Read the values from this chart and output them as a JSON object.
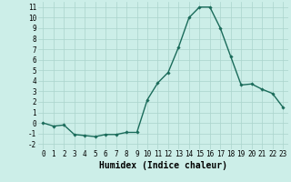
{
  "x": [
    0,
    1,
    2,
    3,
    4,
    5,
    6,
    7,
    8,
    9,
    10,
    11,
    12,
    13,
    14,
    15,
    16,
    17,
    18,
    19,
    20,
    21,
    22,
    23
  ],
  "y": [
    0.0,
    -0.3,
    -0.2,
    -1.1,
    -1.2,
    -1.3,
    -1.1,
    -1.1,
    -0.9,
    -0.9,
    2.2,
    3.8,
    4.8,
    7.2,
    10.0,
    11.0,
    11.0,
    9.0,
    6.3,
    3.6,
    3.7,
    3.2,
    2.8,
    1.5
  ],
  "line_color": "#1a6b5a",
  "marker": "D",
  "marker_size": 1.8,
  "bg_color": "#cceee8",
  "grid_color": "#aad4cc",
  "xlabel": "Humidex (Indice chaleur)",
  "xlim": [
    -0.5,
    23.5
  ],
  "ylim": [
    -2.5,
    11.5
  ],
  "yticks": [
    -2,
    -1,
    0,
    1,
    2,
    3,
    4,
    5,
    6,
    7,
    8,
    9,
    10,
    11
  ],
  "xticks": [
    0,
    1,
    2,
    3,
    4,
    5,
    6,
    7,
    8,
    9,
    10,
    11,
    12,
    13,
    14,
    15,
    16,
    17,
    18,
    19,
    20,
    21,
    22,
    23
  ],
  "tick_fontsize": 5.5,
  "xlabel_fontsize": 7.0,
  "linewidth": 1.0
}
